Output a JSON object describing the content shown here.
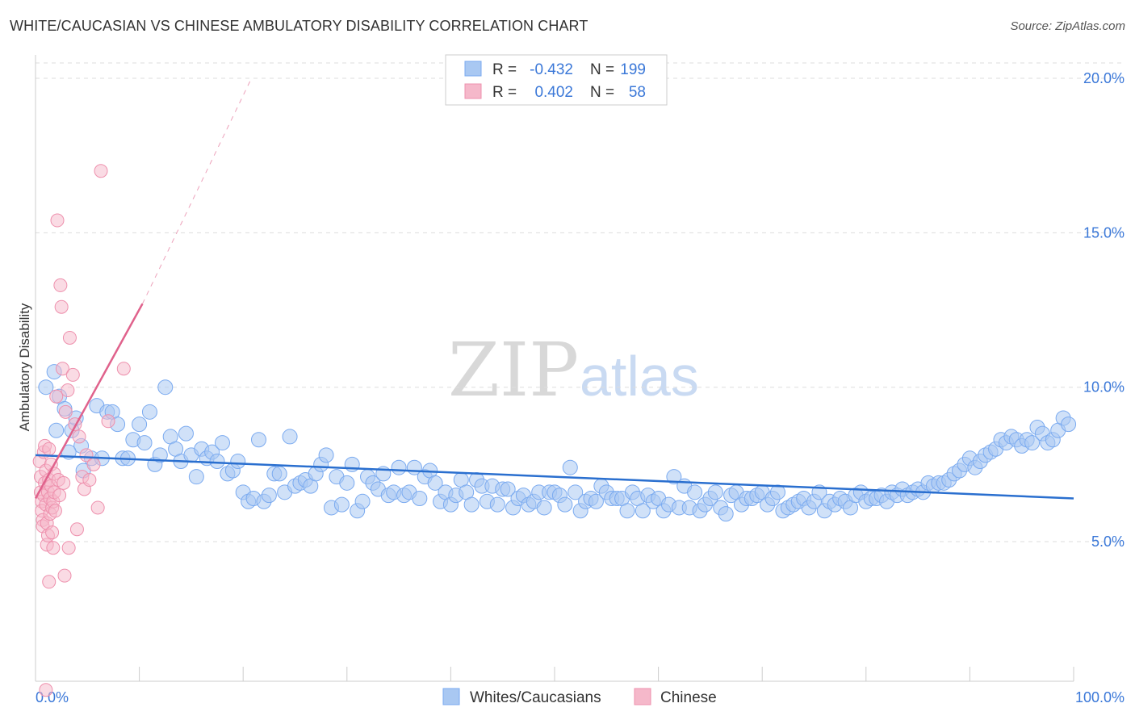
{
  "header": {
    "title": "WHITE/CAUCASIAN VS CHINESE AMBULATORY DISABILITY CORRELATION CHART",
    "source": "Source: ZipAtlas.com"
  },
  "watermark": {
    "zip": "ZIP",
    "atlas": "atlas"
  },
  "legend": {
    "r_label": "R =",
    "n_label": "N =",
    "rows": [
      {
        "r": "-0.432",
        "n": "199",
        "color": "#7aaaf0"
      },
      {
        "r": "0.402",
        "n": "58",
        "color": "#f0a0b8"
      }
    ]
  },
  "bottom_legend": [
    {
      "label": "Whites/Caucasians",
      "color": "#7aaaf0"
    },
    {
      "label": "Chinese",
      "color": "#f0a0b8"
    }
  ],
  "colors": {
    "blue_fill": "#a9c8f2",
    "blue_stroke": "#7aaaf0",
    "blue_line": "#2a6fcf",
    "pink_fill": "#f5b8ca",
    "pink_stroke": "#ee90ad",
    "pink_line": "#e0628c",
    "grid": "#dddddd",
    "axis_text": "#3b78d8"
  },
  "chart_data": {
    "type": "scatter",
    "title": "WHITE/CAUCASIAN VS CHINESE AMBULATORY DISABILITY CORRELATION CHART",
    "xlabel": "",
    "ylabel": "Ambulatory Disability",
    "xlim": [
      0,
      100
    ],
    "ylim": [
      0,
      21
    ],
    "x_tick_labels": [
      "0.0%",
      "100.0%"
    ],
    "y_ticks": [
      5,
      10,
      15,
      20
    ],
    "y_tick_labels": [
      "5.0%",
      "10.0%",
      "15.0%",
      "20.0%"
    ],
    "grid": true,
    "series": [
      {
        "name": "Whites/Caucasians",
        "r": -0.432,
        "n": 199,
        "trend": {
          "x": [
            0,
            100
          ],
          "y": [
            7.8,
            6.4
          ]
        },
        "points": [
          [
            1.0,
            10.0
          ],
          [
            1.8,
            10.5
          ],
          [
            2.3,
            9.7
          ],
          [
            2.8,
            9.3
          ],
          [
            3.5,
            8.6
          ],
          [
            3.9,
            9.0
          ],
          [
            4.4,
            8.1
          ],
          [
            5.4,
            7.7
          ],
          [
            5.9,
            9.4
          ],
          [
            6.4,
            7.7
          ],
          [
            6.9,
            9.2
          ],
          [
            7.4,
            9.2
          ],
          [
            7.9,
            8.8
          ],
          [
            8.4,
            7.7
          ],
          [
            8.9,
            7.7
          ],
          [
            9.4,
            8.3
          ],
          [
            10.0,
            8.8
          ],
          [
            10.5,
            8.2
          ],
          [
            11.0,
            9.2
          ],
          [
            11.5,
            7.5
          ],
          [
            12.0,
            7.8
          ],
          [
            12.5,
            10.0
          ],
          [
            13.0,
            8.4
          ],
          [
            13.5,
            8.0
          ],
          [
            14.0,
            7.6
          ],
          [
            14.5,
            8.5
          ],
          [
            15.0,
            7.8
          ],
          [
            15.5,
            7.1
          ],
          [
            16.0,
            8.0
          ],
          [
            16.5,
            7.7
          ],
          [
            17.0,
            7.9
          ],
          [
            17.5,
            7.6
          ],
          [
            18.0,
            8.2
          ],
          [
            18.5,
            7.2
          ],
          [
            19.0,
            7.3
          ],
          [
            19.5,
            7.6
          ],
          [
            20.0,
            6.6
          ],
          [
            20.5,
            6.3
          ],
          [
            21.0,
            6.4
          ],
          [
            21.5,
            8.3
          ],
          [
            22.0,
            6.3
          ],
          [
            22.5,
            6.5
          ],
          [
            23.0,
            7.2
          ],
          [
            23.5,
            7.2
          ],
          [
            24.0,
            6.6
          ],
          [
            24.5,
            8.4
          ],
          [
            25.0,
            6.8
          ],
          [
            25.5,
            6.9
          ],
          [
            26.0,
            7.0
          ],
          [
            26.5,
            6.8
          ],
          [
            27.0,
            7.2
          ],
          [
            27.5,
            7.5
          ],
          [
            28.0,
            7.8
          ],
          [
            28.5,
            6.1
          ],
          [
            29.0,
            7.1
          ],
          [
            29.5,
            6.2
          ],
          [
            30.0,
            6.9
          ],
          [
            30.5,
            7.5
          ],
          [
            31.0,
            6.0
          ],
          [
            31.5,
            6.3
          ],
          [
            32.0,
            7.1
          ],
          [
            32.5,
            6.9
          ],
          [
            33.0,
            6.7
          ],
          [
            33.5,
            7.2
          ],
          [
            34.0,
            6.5
          ],
          [
            34.5,
            6.6
          ],
          [
            35.0,
            7.4
          ],
          [
            35.5,
            6.5
          ],
          [
            36.0,
            6.6
          ],
          [
            36.5,
            7.4
          ],
          [
            37.0,
            6.4
          ],
          [
            37.5,
            7.1
          ],
          [
            38.0,
            7.3
          ],
          [
            38.5,
            6.9
          ],
          [
            39.0,
            6.3
          ],
          [
            39.5,
            6.6
          ],
          [
            40.0,
            6.2
          ],
          [
            40.5,
            6.5
          ],
          [
            41.0,
            7.0
          ],
          [
            41.5,
            6.6
          ],
          [
            42.0,
            6.2
          ],
          [
            42.5,
            7.0
          ],
          [
            43.0,
            6.8
          ],
          [
            43.5,
            6.3
          ],
          [
            44.0,
            6.8
          ],
          [
            44.5,
            6.2
          ],
          [
            45.0,
            6.7
          ],
          [
            45.5,
            6.7
          ],
          [
            46.0,
            6.1
          ],
          [
            46.5,
            6.4
          ],
          [
            47.0,
            6.5
          ],
          [
            47.5,
            6.2
          ],
          [
            48.0,
            6.3
          ],
          [
            48.5,
            6.6
          ],
          [
            49.0,
            6.1
          ],
          [
            49.5,
            6.6
          ],
          [
            50.0,
            6.6
          ],
          [
            50.5,
            6.5
          ],
          [
            51.0,
            6.2
          ],
          [
            51.5,
            7.4
          ],
          [
            52.0,
            6.6
          ],
          [
            52.5,
            6.0
          ],
          [
            53.0,
            6.3
          ],
          [
            53.5,
            6.4
          ],
          [
            54.0,
            6.3
          ],
          [
            54.5,
            6.8
          ],
          [
            55.0,
            6.6
          ],
          [
            55.5,
            6.4
          ],
          [
            56.0,
            6.4
          ],
          [
            56.5,
            6.4
          ],
          [
            57.0,
            6.0
          ],
          [
            57.5,
            6.6
          ],
          [
            58.0,
            6.4
          ],
          [
            58.5,
            6.0
          ],
          [
            59.0,
            6.5
          ],
          [
            59.5,
            6.3
          ],
          [
            60.0,
            6.4
          ],
          [
            60.5,
            6.0
          ],
          [
            61.0,
            6.2
          ],
          [
            61.5,
            7.1
          ],
          [
            62.0,
            6.1
          ],
          [
            62.5,
            6.8
          ],
          [
            63.0,
            6.1
          ],
          [
            63.5,
            6.6
          ],
          [
            64.0,
            6.0
          ],
          [
            64.5,
            6.2
          ],
          [
            65.0,
            6.4
          ],
          [
            65.5,
            6.6
          ],
          [
            66.0,
            6.1
          ],
          [
            66.5,
            5.9
          ],
          [
            67.0,
            6.5
          ],
          [
            67.5,
            6.6
          ],
          [
            68.0,
            6.2
          ],
          [
            68.5,
            6.4
          ],
          [
            69.0,
            6.4
          ],
          [
            69.5,
            6.5
          ],
          [
            70.0,
            6.6
          ],
          [
            70.5,
            6.2
          ],
          [
            71.0,
            6.4
          ],
          [
            71.5,
            6.6
          ],
          [
            72.0,
            6.0
          ],
          [
            72.5,
            6.1
          ],
          [
            73.0,
            6.2
          ],
          [
            73.5,
            6.3
          ],
          [
            74.0,
            6.4
          ],
          [
            74.5,
            6.1
          ],
          [
            75.0,
            6.3
          ],
          [
            75.5,
            6.6
          ],
          [
            76.0,
            6.0
          ],
          [
            76.5,
            6.3
          ],
          [
            77.0,
            6.2
          ],
          [
            77.5,
            6.4
          ],
          [
            78.0,
            6.3
          ],
          [
            78.5,
            6.1
          ],
          [
            79.0,
            6.5
          ],
          [
            79.5,
            6.6
          ],
          [
            80.0,
            6.3
          ],
          [
            80.5,
            6.4
          ],
          [
            81.0,
            6.4
          ],
          [
            81.5,
            6.5
          ],
          [
            82.0,
            6.3
          ],
          [
            82.5,
            6.6
          ],
          [
            83.0,
            6.5
          ],
          [
            83.5,
            6.7
          ],
          [
            84.0,
            6.5
          ],
          [
            84.5,
            6.6
          ],
          [
            85.0,
            6.7
          ],
          [
            85.5,
            6.6
          ],
          [
            86.0,
            6.9
          ],
          [
            86.5,
            6.8
          ],
          [
            87.0,
            6.9
          ],
          [
            87.5,
            6.9
          ],
          [
            88.0,
            7.0
          ],
          [
            88.5,
            7.2
          ],
          [
            89.0,
            7.3
          ],
          [
            89.5,
            7.5
          ],
          [
            90.0,
            7.7
          ],
          [
            90.5,
            7.4
          ],
          [
            91.0,
            7.6
          ],
          [
            91.5,
            7.8
          ],
          [
            92.0,
            7.9
          ],
          [
            92.5,
            8.0
          ],
          [
            93.0,
            8.3
          ],
          [
            93.5,
            8.2
          ],
          [
            94.0,
            8.4
          ],
          [
            94.5,
            8.3
          ],
          [
            95.0,
            8.1
          ],
          [
            95.5,
            8.3
          ],
          [
            96.0,
            8.2
          ],
          [
            96.5,
            8.7
          ],
          [
            97.0,
            8.5
          ],
          [
            97.5,
            8.2
          ],
          [
            98.0,
            8.3
          ],
          [
            98.5,
            8.6
          ],
          [
            99.0,
            9.0
          ],
          [
            99.5,
            8.8
          ],
          [
            2.0,
            8.6
          ],
          [
            3.2,
            7.9
          ],
          [
            4.6,
            7.3
          ]
        ]
      },
      {
        "name": "Chinese",
        "r": 0.402,
        "n": 58,
        "trend": {
          "x": [
            0,
            10.3
          ],
          "y": [
            6.4,
            12.7
          ],
          "dashed_to": {
            "x": 20.8,
            "y": 20.0
          }
        },
        "points": [
          [
            0.4,
            7.6
          ],
          [
            0.5,
            7.1
          ],
          [
            0.5,
            6.6
          ],
          [
            0.6,
            6.3
          ],
          [
            0.6,
            6.0
          ],
          [
            0.7,
            5.7
          ],
          [
            0.7,
            5.5
          ],
          [
            0.8,
            6.5
          ],
          [
            0.8,
            7.9
          ],
          [
            0.9,
            8.1
          ],
          [
            0.9,
            6.9
          ],
          [
            1.0,
            7.3
          ],
          [
            1.0,
            6.2
          ],
          [
            1.1,
            5.6
          ],
          [
            1.1,
            4.9
          ],
          [
            1.2,
            5.2
          ],
          [
            1.2,
            6.6
          ],
          [
            1.3,
            7.0
          ],
          [
            1.3,
            8.0
          ],
          [
            1.4,
            6.4
          ],
          [
            1.4,
            5.9
          ],
          [
            1.5,
            6.8
          ],
          [
            1.5,
            7.5
          ],
          [
            1.6,
            6.1
          ],
          [
            1.6,
            5.3
          ],
          [
            1.7,
            4.8
          ],
          [
            1.7,
            6.3
          ],
          [
            1.8,
            7.2
          ],
          [
            1.8,
            6.6
          ],
          [
            1.9,
            6.0
          ],
          [
            2.0,
            9.7
          ],
          [
            2.1,
            15.4
          ],
          [
            2.2,
            7.0
          ],
          [
            2.3,
            6.5
          ],
          [
            2.4,
            13.3
          ],
          [
            2.5,
            12.6
          ],
          [
            2.6,
            10.6
          ],
          [
            2.7,
            6.9
          ],
          [
            2.8,
            3.9
          ],
          [
            2.9,
            9.2
          ],
          [
            3.1,
            9.9
          ],
          [
            3.3,
            11.6
          ],
          [
            3.6,
            10.4
          ],
          [
            3.8,
            8.8
          ],
          [
            4.0,
            5.4
          ],
          [
            4.2,
            8.4
          ],
          [
            4.5,
            7.1
          ],
          [
            4.7,
            6.7
          ],
          [
            4.9,
            7.8
          ],
          [
            5.2,
            7.0
          ],
          [
            5.6,
            7.5
          ],
          [
            6.0,
            6.1
          ],
          [
            6.3,
            17.0
          ],
          [
            7.0,
            8.9
          ],
          [
            8.5,
            10.6
          ],
          [
            1.3,
            3.7
          ],
          [
            1.0,
            0.2
          ],
          [
            3.2,
            4.8
          ]
        ]
      }
    ]
  }
}
